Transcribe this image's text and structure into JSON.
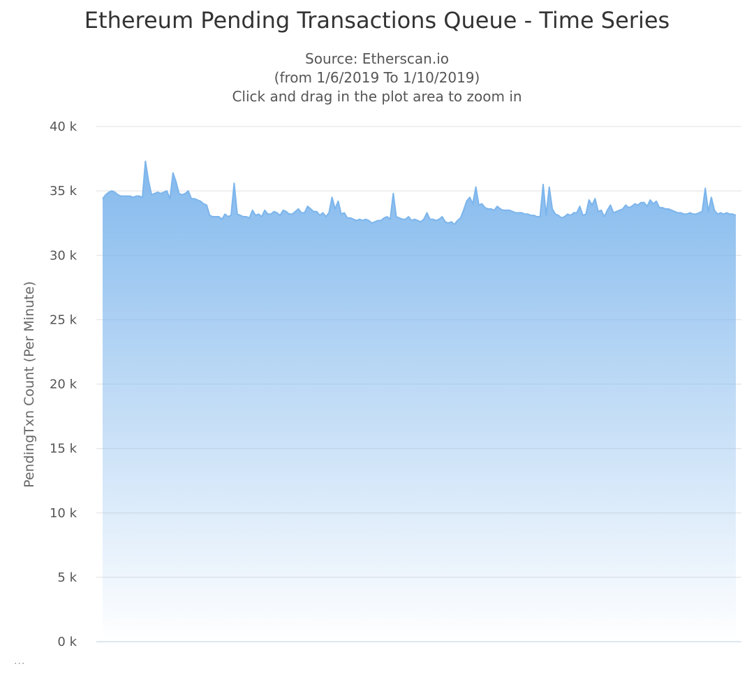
{
  "chart_data": {
    "type": "area",
    "title": "Ethereum Pending Transactions Queue - Time Series",
    "subtitles": [
      "Source: Etherscan.io",
      "(from 1/6/2019 To 1/10/2019)",
      "Click and drag in the plot area to zoom in"
    ],
    "xlabel": "",
    "ylabel": "PendingTxn Count (Per Minute)",
    "ylim": [
      0,
      40000
    ],
    "yticks": [
      0,
      5000,
      10000,
      15000,
      20000,
      25000,
      30000,
      35000,
      40000
    ],
    "ytick_labels": [
      "0 k",
      "5 k",
      "10 k",
      "15 k",
      "20 k",
      "25 k",
      "30 k",
      "35 k",
      "40 k"
    ],
    "grid": true,
    "legend": "none",
    "x_start": "1/6/2019",
    "x_end": "1/10/2019",
    "colors": {
      "line": "#7cb5ec",
      "fill_top": "#7cb5ec",
      "fill_bottom": "#ffffff"
    },
    "values": [
      34400,
      34700,
      34900,
      35000,
      34900,
      34700,
      34600,
      34600,
      34600,
      34600,
      34500,
      34600,
      34600,
      34500,
      37300,
      35800,
      34700,
      34800,
      34900,
      34800,
      34900,
      35000,
      34400,
      36400,
      35700,
      34800,
      34700,
      34800,
      35000,
      34400,
      34400,
      34300,
      34200,
      34000,
      33900,
      33100,
      33000,
      33000,
      33000,
      32800,
      33200,
      33000,
      33100,
      35600,
      33200,
      33100,
      33000,
      33000,
      32900,
      33500,
      33100,
      33200,
      33000,
      33500,
      33200,
      33200,
      33400,
      33300,
      33100,
      33500,
      33400,
      33200,
      33200,
      33400,
      33600,
      33300,
      33300,
      33800,
      33600,
      33400,
      33400,
      33100,
      33300,
      33000,
      33300,
      34500,
      33600,
      34200,
      33200,
      33300,
      32900,
      32900,
      32800,
      32700,
      32800,
      32700,
      32800,
      32700,
      32500,
      32600,
      32700,
      32700,
      32900,
      33000,
      32800,
      34800,
      33000,
      32900,
      32800,
      32800,
      33000,
      32700,
      32800,
      32700,
      32600,
      32800,
      33300,
      32800,
      32800,
      32700,
      32800,
      33000,
      32600,
      32500,
      32600,
      32400,
      32700,
      32900,
      33500,
      34200,
      34500,
      34000,
      35300,
      33900,
      34000,
      33700,
      33600,
      33600,
      33500,
      33800,
      33600,
      33500,
      33500,
      33500,
      33400,
      33300,
      33300,
      33300,
      33200,
      33200,
      33100,
      33100,
      33000,
      33000,
      35500,
      33100,
      35300,
      33600,
      33200,
      33100,
      32900,
      33000,
      33200,
      33100,
      33300,
      33300,
      33800,
      33100,
      33200,
      34300,
      33900,
      34400,
      33400,
      33500,
      33000,
      33500,
      33900,
      33300,
      33400,
      33500,
      33600,
      33900,
      33700,
      33800,
      34000,
      33900,
      34100,
      34100,
      33800,
      34300,
      34000,
      34200,
      33700,
      33700,
      33600,
      33600,
      33500,
      33400,
      33300,
      33300,
      33200,
      33200,
      33300,
      33200,
      33200,
      33300,
      33400,
      35200,
      33400,
      34500,
      33500,
      33200,
      33300,
      33200,
      33300,
      33200,
      33200,
      33100
    ]
  }
}
